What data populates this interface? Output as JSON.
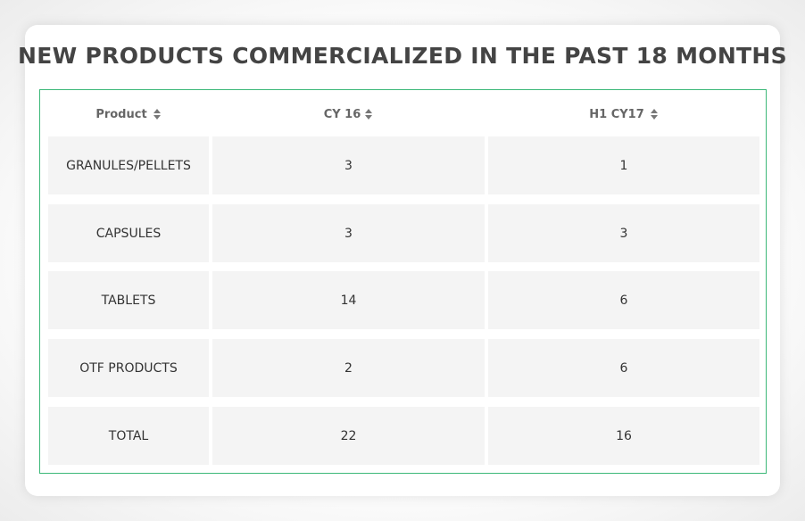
{
  "title": "NEW PRODUCTS COMMERCIALIZED IN THE PAST 18 MONTHS",
  "columns": [
    {
      "label": "Product",
      "icon": "sort-icon"
    },
    {
      "label": "CY 16",
      "icon": "sort-icon"
    },
    {
      "label": "H1 CY17",
      "icon": "sort-icon"
    }
  ],
  "rows": [
    {
      "product": "GRANULES/PELLETS",
      "cy16": "3",
      "h1cy17": "1"
    },
    {
      "product": "CAPSULES",
      "cy16": "3",
      "h1cy17": "3"
    },
    {
      "product": "TABLETS",
      "cy16": "14",
      "h1cy17": "6"
    },
    {
      "product": "OTF PRODUCTS",
      "cy16": "2",
      "h1cy17": "6"
    },
    {
      "product": "TOTAL",
      "cy16": "22",
      "h1cy17": "16"
    }
  ],
  "colors": {
    "border_accent": "#3cb878",
    "cell_background": "#f4f4f4",
    "title_text": "#444444"
  }
}
